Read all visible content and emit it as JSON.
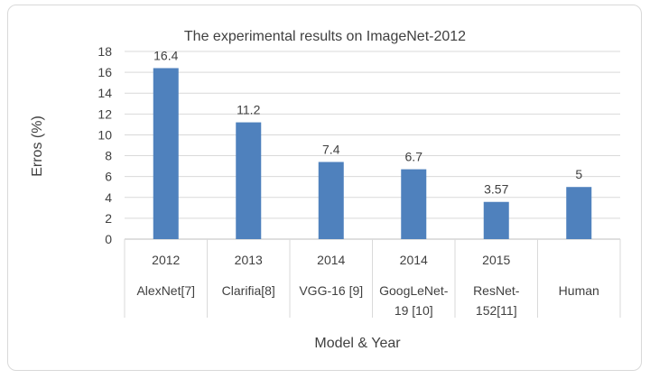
{
  "chart_data": {
    "type": "bar",
    "title": "The experimental results on ImageNet-2012",
    "xlabel": "Model & Year",
    "ylabel": "Erros (%)",
    "ylim": [
      0,
      18
    ],
    "yticks": [
      0,
      2,
      4,
      6,
      8,
      10,
      12,
      14,
      16,
      18
    ],
    "grid": true,
    "categories": [
      {
        "year": "2012",
        "name": [
          "AlexNet[7]"
        ]
      },
      {
        "year": "2013",
        "name": [
          "Clarifia[8]"
        ]
      },
      {
        "year": "2014",
        "name": [
          "VGG-16 [9]"
        ]
      },
      {
        "year": "2014",
        "name": [
          "GoogLeNet-",
          "19 [10]"
        ]
      },
      {
        "year": "2015",
        "name": [
          "ResNet-",
          "152[11]"
        ]
      },
      {
        "year": "",
        "name": [
          "Human"
        ]
      }
    ],
    "values": [
      16.4,
      11.2,
      7.4,
      6.7,
      3.57,
      5
    ],
    "data_labels": [
      "16.4",
      "11.2",
      "7.4",
      "6.7",
      "3.57",
      "5"
    ],
    "colors": {
      "bar": "#4f81bd",
      "grid": "#d9d9d9"
    }
  }
}
